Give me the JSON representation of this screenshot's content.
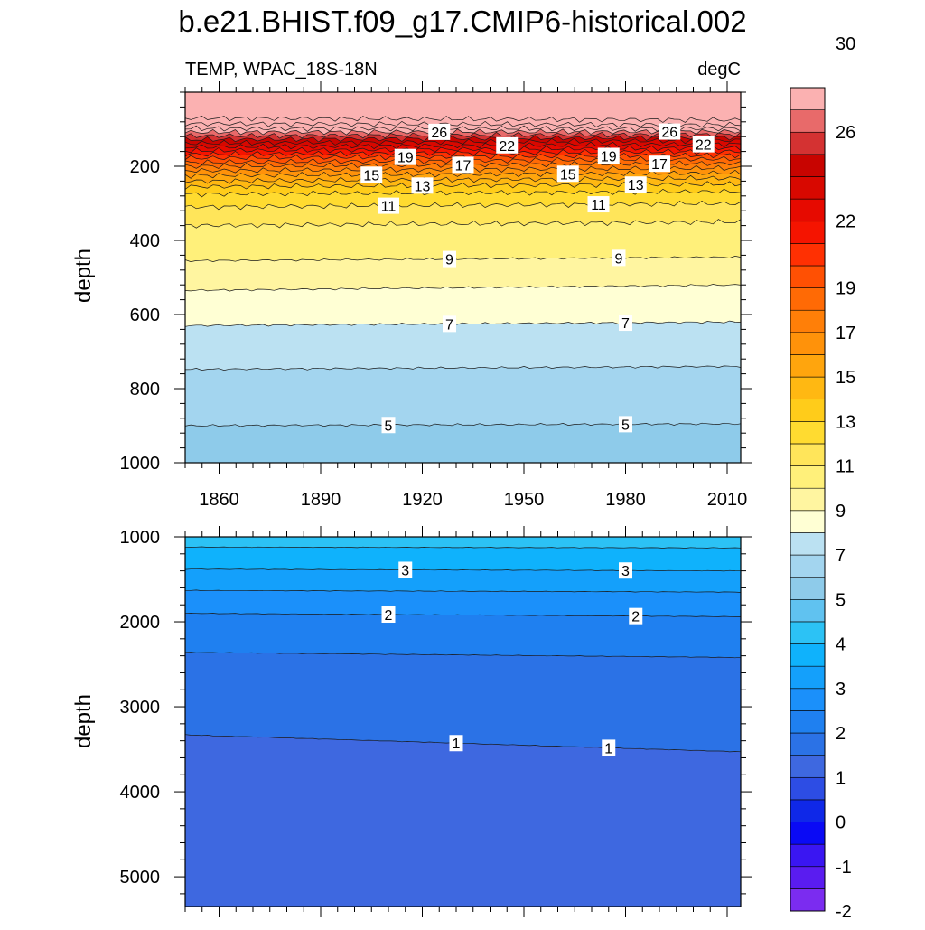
{
  "figure": {
    "title": "b.e21.BHIST.f09_g17.CMIP6-historical.002"
  },
  "chart_data": [
    {
      "type": "heatmap",
      "panel": "upper",
      "subtitle_left": "TEMP, WPAC_18S-18N",
      "subtitle_right": "degC",
      "ylabel": "depth",
      "xlabel": "",
      "xlim": [
        1850,
        2014
      ],
      "ylim": [
        0,
        1000
      ],
      "y_reversed": true,
      "xticks": [
        1860,
        1890,
        1920,
        1950,
        1980,
        2010
      ],
      "yticks": [
        200,
        400,
        600,
        800,
        1000
      ],
      "contour_label_positions": [
        {
          "value": 26,
          "x": [
            1925,
            1993
          ]
        },
        {
          "value": 22,
          "x": [
            1945,
            2003
          ]
        },
        {
          "value": 19,
          "x": [
            1915,
            1975
          ]
        },
        {
          "value": 17,
          "x": [
            1932,
            1990
          ]
        },
        {
          "value": 15,
          "x": [
            1905,
            1963
          ]
        },
        {
          "value": 13,
          "x": [
            1920,
            1983
          ]
        },
        {
          "value": 11,
          "x": [
            1910,
            1972
          ]
        },
        {
          "value": 9,
          "x": [
            1928,
            1978
          ]
        },
        {
          "value": 7,
          "x": [
            1928,
            1980
          ]
        },
        {
          "value": 5,
          "x": [
            1910,
            1980
          ]
        }
      ],
      "isotherm_depths": [
        {
          "value": 29,
          "depth": [
            70,
            75
          ]
        },
        {
          "value": 28,
          "depth": [
            85,
            88
          ]
        },
        {
          "value": 27,
          "depth": [
            98,
            98
          ]
        },
        {
          "value": 26,
          "depth": [
            108,
            106
          ]
        },
        {
          "value": 25,
          "depth": [
            118,
            114
          ]
        },
        {
          "value": 24,
          "depth": [
            128,
            122
          ]
        },
        {
          "value": 23,
          "depth": [
            138,
            130
          ]
        },
        {
          "value": 22,
          "depth": [
            148,
            140
          ]
        },
        {
          "value": 21,
          "depth": [
            158,
            150
          ]
        },
        {
          "value": 20,
          "depth": [
            168,
            160
          ]
        },
        {
          "value": 19,
          "depth": [
            178,
            170
          ]
        },
        {
          "value": 18,
          "depth": [
            190,
            180
          ]
        },
        {
          "value": 17,
          "depth": [
            200,
            192
          ]
        },
        {
          "value": 16,
          "depth": [
            212,
            205
          ]
        },
        {
          "value": 15,
          "depth": [
            225,
            218
          ]
        },
        {
          "value": 14,
          "depth": [
            240,
            232
          ]
        },
        {
          "value": 13,
          "depth": [
            255,
            248
          ]
        },
        {
          "value": 12,
          "depth": [
            275,
            268
          ]
        },
        {
          "value": 11,
          "depth": [
            310,
            300
          ]
        },
        {
          "value": 10,
          "depth": [
            360,
            350
          ]
        },
        {
          "value": 9,
          "depth": [
            455,
            445
          ]
        },
        {
          "value": 8,
          "depth": [
            535,
            520
          ]
        },
        {
          "value": 7,
          "depth": [
            630,
            620
          ]
        },
        {
          "value": 6,
          "depth": [
            748,
            740
          ]
        },
        {
          "value": 5,
          "depth": [
            900,
            895
          ]
        }
      ]
    },
    {
      "type": "heatmap",
      "panel": "lower",
      "ylabel": "depth",
      "xlim": [
        1850,
        2014
      ],
      "ylim": [
        1000,
        5350
      ],
      "y_reversed": true,
      "yticks": [
        1000,
        2000,
        3000,
        4000,
        5000
      ],
      "contour_label_positions": [
        {
          "value": 3,
          "x": [
            1915,
            1980
          ]
        },
        {
          "value": 2,
          "x": [
            1910,
            1983
          ]
        },
        {
          "value": 1,
          "x": [
            1930,
            1975
          ]
        }
      ],
      "isotherm_depths": [
        {
          "value": 3.5,
          "depth": [
            1120,
            1130
          ]
        },
        {
          "value": 3,
          "depth": [
            1380,
            1400
          ]
        },
        {
          "value": 2.5,
          "depth": [
            1630,
            1650
          ]
        },
        {
          "value": 2,
          "depth": [
            1900,
            1940
          ]
        },
        {
          "value": 1.5,
          "depth": [
            2360,
            2420
          ]
        },
        {
          "value": 1,
          "depth": [
            3330,
            3530
          ]
        }
      ]
    }
  ],
  "colorbar": {
    "labels": [
      "30",
      "26",
      "22",
      "19",
      "17",
      "15",
      "13",
      "11",
      "9",
      "7",
      "5",
      "4",
      "3",
      "2",
      "1",
      "0",
      "-1",
      "-2"
    ],
    "levels": [
      -2,
      -1.5,
      -1,
      -0.5,
      0,
      0.5,
      1,
      1.5,
      2,
      2.5,
      3,
      3.5,
      4,
      4.5,
      5,
      6,
      7,
      8,
      9,
      10,
      11,
      12,
      13,
      14,
      15,
      16,
      17,
      18,
      19,
      20,
      21,
      22,
      23,
      24,
      25,
      26,
      27,
      28,
      29,
      30,
      31,
      32,
      33,
      34
    ],
    "colors_bottom_to_top": [
      "#7b2cf0",
      "#5a1cf0",
      "#3a16f2",
      "#0a0af5",
      "#0f28e8",
      "#2d4de4",
      "#3e68e0",
      "#2b72e6",
      "#1f80f0",
      "#1b90fa",
      "#14a0fb",
      "#0fb2fc",
      "#2cc2f5",
      "#60c2f0",
      "#8ecbea",
      "#a3d5ef",
      "#bbe1f2",
      "#ffffd4",
      "#fff5a0",
      "#fff07a",
      "#ffe55a",
      "#ffdb30",
      "#ffcc1a",
      "#ffb812",
      "#ffa50d",
      "#ff920a",
      "#ff7f08",
      "#ff6a05",
      "#ff5003",
      "#ff3002",
      "#f51400",
      "#e60a00",
      "#d80800",
      "#c80400",
      "#d43232",
      "#e86a6a",
      "#fbb1b1"
    ]
  },
  "ui": {
    "font_note": ""
  }
}
